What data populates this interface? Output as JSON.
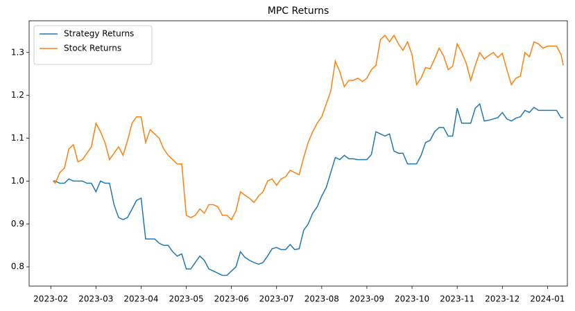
{
  "chart_data": {
    "type": "line",
    "title": "MPC Returns",
    "x": [
      2.05,
      2.1,
      2.2,
      2.3,
      2.4,
      2.5,
      2.6,
      2.7,
      2.8,
      2.9,
      3.0,
      3.1,
      3.2,
      3.3,
      3.4,
      3.5,
      3.6,
      3.7,
      3.8,
      3.9,
      4.0,
      4.1,
      4.2,
      4.3,
      4.4,
      4.5,
      4.6,
      4.7,
      4.8,
      4.9,
      5.0,
      5.1,
      5.2,
      5.3,
      5.4,
      5.5,
      5.6,
      5.7,
      5.8,
      5.9,
      6.0,
      6.1,
      6.2,
      6.3,
      6.4,
      6.5,
      6.6,
      6.7,
      6.8,
      6.9,
      7.0,
      7.1,
      7.2,
      7.3,
      7.4,
      7.5,
      7.6,
      7.7,
      7.8,
      7.9,
      8.0,
      8.1,
      8.2,
      8.3,
      8.4,
      8.5,
      8.6,
      8.7,
      8.8,
      8.9,
      9.0,
      9.1,
      9.2,
      9.3,
      9.4,
      9.5,
      9.6,
      9.7,
      9.8,
      9.9,
      10.0,
      10.1,
      10.2,
      10.3,
      10.4,
      10.5,
      10.6,
      10.7,
      10.8,
      10.9,
      11.0,
      11.1,
      11.2,
      11.3,
      11.4,
      11.5,
      11.6,
      11.7,
      11.8,
      11.9,
      12.0,
      12.1,
      12.2,
      12.3,
      12.4,
      12.5,
      12.6,
      12.7,
      12.8,
      12.9,
      13.0,
      13.1,
      13.2,
      13.3,
      13.35
    ],
    "series": [
      {
        "name": "Strategy Returns",
        "color": "#1f77b4",
        "values": [
          1.0,
          1.0,
          0.995,
          0.995,
          1.005,
          1.0,
          1.0,
          1.0,
          0.995,
          0.995,
          0.975,
          1.0,
          0.995,
          0.995,
          0.945,
          0.915,
          0.91,
          0.915,
          0.935,
          0.955,
          0.96,
          0.865,
          0.865,
          0.865,
          0.855,
          0.85,
          0.85,
          0.835,
          0.825,
          0.83,
          0.795,
          0.795,
          0.81,
          0.825,
          0.815,
          0.795,
          0.79,
          0.785,
          0.78,
          0.78,
          0.79,
          0.8,
          0.835,
          0.822,
          0.815,
          0.81,
          0.806,
          0.81,
          0.825,
          0.842,
          0.845,
          0.84,
          0.84,
          0.852,
          0.84,
          0.842,
          0.885,
          0.9,
          0.925,
          0.94,
          0.965,
          0.985,
          1.02,
          1.055,
          1.05,
          1.06,
          1.052,
          1.052,
          1.05,
          1.05,
          1.05,
          1.062,
          1.115,
          1.11,
          1.105,
          1.11,
          1.07,
          1.065,
          1.065,
          1.04,
          1.04,
          1.04,
          1.06,
          1.09,
          1.095,
          1.115,
          1.125,
          1.125,
          1.105,
          1.105,
          1.17,
          1.135,
          1.135,
          1.135,
          1.17,
          1.18,
          1.14,
          1.142,
          1.145,
          1.148,
          1.16,
          1.145,
          1.14,
          1.147,
          1.15,
          1.165,
          1.16,
          1.172,
          1.165,
          1.165,
          1.165,
          1.165,
          1.165,
          1.148,
          1.148
        ]
      },
      {
        "name": "Stock Returns",
        "color": "#ff7f0e",
        "values": [
          1.0,
          0.995,
          1.02,
          1.03,
          1.075,
          1.085,
          1.045,
          1.05,
          1.065,
          1.08,
          1.135,
          1.115,
          1.09,
          1.05,
          1.065,
          1.08,
          1.06,
          1.095,
          1.135,
          1.15,
          1.15,
          1.09,
          1.12,
          1.11,
          1.1,
          1.075,
          1.06,
          1.05,
          1.04,
          1.04,
          0.92,
          0.915,
          0.92,
          0.935,
          0.925,
          0.945,
          0.945,
          0.94,
          0.92,
          0.92,
          0.91,
          0.93,
          0.975,
          0.967,
          0.96,
          0.95,
          0.965,
          0.975,
          1.0,
          1.005,
          0.99,
          1.005,
          1.01,
          1.025,
          1.02,
          1.015,
          1.055,
          1.09,
          1.115,
          1.135,
          1.15,
          1.18,
          1.21,
          1.28,
          1.255,
          1.22,
          1.235,
          1.235,
          1.24,
          1.232,
          1.24,
          1.26,
          1.27,
          1.33,
          1.34,
          1.325,
          1.34,
          1.32,
          1.305,
          1.325,
          1.295,
          1.225,
          1.24,
          1.265,
          1.262,
          1.285,
          1.31,
          1.292,
          1.26,
          1.268,
          1.32,
          1.3,
          1.275,
          1.235,
          1.27,
          1.3,
          1.285,
          1.293,
          1.3,
          1.288,
          1.298,
          1.26,
          1.225,
          1.24,
          1.245,
          1.3,
          1.29,
          1.325,
          1.32,
          1.31,
          1.315,
          1.315,
          1.315,
          1.295,
          1.27
        ]
      }
    ],
    "xlim": [
      1.52,
      13.44
    ],
    "xticks": [
      {
        "value": 2,
        "label": "2023-02"
      },
      {
        "value": 3,
        "label": "2023-03"
      },
      {
        "value": 4,
        "label": "2023-04"
      },
      {
        "value": 5,
        "label": "2023-05"
      },
      {
        "value": 6,
        "label": "2023-06"
      },
      {
        "value": 7,
        "label": "2023-07"
      },
      {
        "value": 8,
        "label": "2023-08"
      },
      {
        "value": 9,
        "label": "2023-09"
      },
      {
        "value": 10,
        "label": "2023-10"
      },
      {
        "value": 11,
        "label": "2023-11"
      },
      {
        "value": 12,
        "label": "2023-12"
      },
      {
        "value": 13,
        "label": "2024-01"
      }
    ],
    "ylim": [
      0.755,
      1.374
    ],
    "yticks": [
      0.8,
      0.9,
      {
        "value": 1,
        "label": "1.0"
      },
      1.1,
      1.2,
      1.3
    ],
    "grid": false,
    "legend": "upper left"
  }
}
